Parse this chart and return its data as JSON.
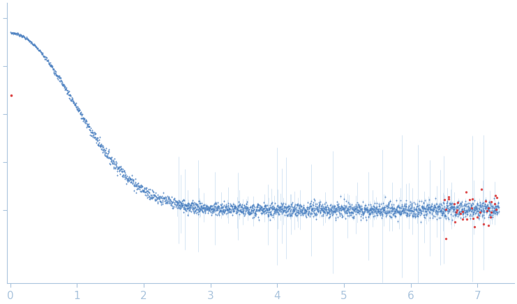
{
  "background_color": "#ffffff",
  "dot_color_blue": "#4a7fc0",
  "dot_color_red": "#d93030",
  "errorbar_color": "#a8c8e8",
  "spine_color": "#aac4dd",
  "tick_color": "#aac4dd",
  "tick_fontsize": 11,
  "xlim": [
    -0.05,
    7.55
  ],
  "ylim_min": -0.38,
  "ylim_max": 1.08,
  "x_ticks": [
    0,
    1,
    2,
    3,
    4,
    5,
    6,
    7
  ],
  "seed": 7,
  "n_low": 120,
  "n_mid": 500,
  "n_high": 1900
}
